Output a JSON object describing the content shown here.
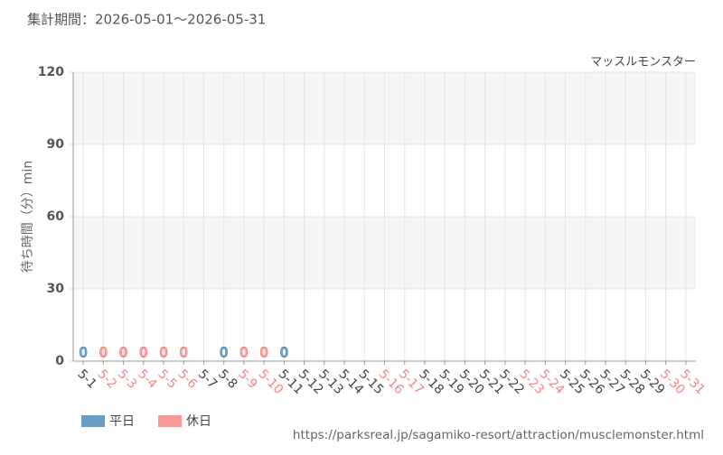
{
  "chart_data": {
    "type": "bar",
    "title": "集計期間：2026-05-01〜2026-05-31",
    "subtitle": "マッスルモンスター",
    "y_label": "待ち時間（分）min",
    "source": "https://parksreal.jp/sagamiko-resort/attraction/musclemonster.html",
    "categories": [
      "5-1",
      "5-2",
      "5-3",
      "5-4",
      "5-5",
      "5-6",
      "5-7",
      "5-8",
      "5-9",
      "5-10",
      "5-11",
      "5-12",
      "5-13",
      "5-14",
      "5-15",
      "5-16",
      "5-17",
      "5-18",
      "5-19",
      "5-20",
      "5-21",
      "5-22",
      "5-23",
      "5-24",
      "5-25",
      "5-26",
      "5-27",
      "5-28",
      "5-29",
      "5-30",
      "5-31"
    ],
    "category_colors": [
      "#444",
      "#f38686",
      "#f38686",
      "#f38686",
      "#f38686",
      "#f38686",
      "#444",
      "#444",
      "#f38686",
      "#f38686",
      "#444",
      "#444",
      "#444",
      "#444",
      "#444",
      "#f38686",
      "#f38686",
      "#444",
      "#444",
      "#444",
      "#444",
      "#444",
      "#f38686",
      "#f38686",
      "#444",
      "#444",
      "#444",
      "#444",
      "#444",
      "#f38686",
      "#f38686"
    ],
    "series": [
      {
        "name": "平日",
        "color": "#6a9cc4",
        "label_color": "#5b8db8",
        "values": [
          0,
          null,
          null,
          null,
          null,
          null,
          null,
          0,
          null,
          null,
          0,
          null,
          null,
          null,
          null,
          null,
          null,
          null,
          null,
          null,
          null,
          null,
          null,
          null,
          null,
          null,
          null,
          null,
          null,
          null,
          null
        ]
      },
      {
        "name": "休日",
        "color": "#f99a9a",
        "label_color": "#f38686",
        "values": [
          null,
          0,
          0,
          0,
          0,
          0,
          null,
          null,
          0,
          0,
          null,
          null,
          null,
          null,
          null,
          null,
          null,
          null,
          null,
          null,
          null,
          null,
          null,
          null,
          null,
          null,
          null,
          null,
          null,
          null,
          null
        ]
      }
    ],
    "ylim": [
      0,
      120
    ],
    "yticks": [
      0,
      30,
      60,
      90,
      120
    ],
    "grid": true
  }
}
